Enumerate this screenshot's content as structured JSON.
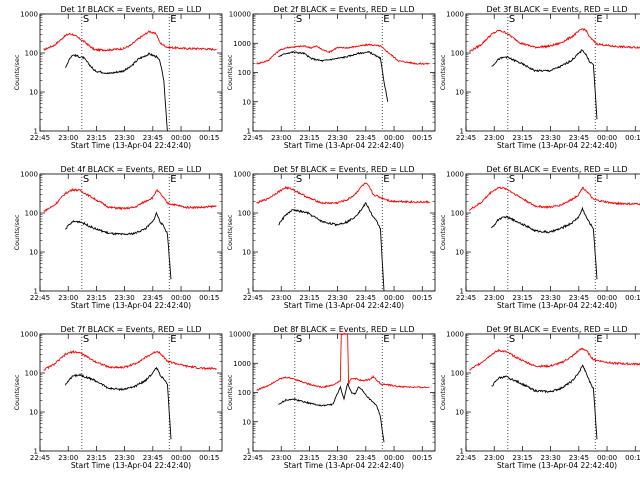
{
  "page": {
    "background": "#ffffff",
    "black_color": "#000000",
    "red_color": "#ff0000"
  },
  "chart_data": [
    {
      "type": "line",
      "title": "Det 1f BLACK = Events, RED = LLD",
      "xlabel": "Start Time (13-Apr-04 22:42:40)",
      "ylabel": "Counts/sec",
      "yscale": "log",
      "ylim": [
        1,
        1000
      ],
      "x_tick_labels": [
        "22:45",
        "23:00",
        "23:15",
        "23:30",
        "23:45",
        "00:00",
        "00:15"
      ],
      "y_tick_labels": [
        "1",
        "10",
        "100",
        "1000"
      ],
      "markers": [
        "S",
        "E"
      ],
      "series": [
        {
          "color": "red",
          "x": [
            2,
            8,
            14,
            16,
            18,
            24,
            30,
            38,
            46,
            50,
            54,
            60,
            64,
            66,
            70,
            80,
            85,
            89,
            93,
            97
          ],
          "y": [
            120,
            160,
            280,
            310,
            300,
            200,
            120,
            120,
            130,
            160,
            230,
            360,
            300,
            180,
            140,
            130,
            130,
            130,
            125,
            125
          ]
        },
        {
          "color": "black",
          "x": [
            14,
            16,
            18,
            24,
            30,
            38,
            46,
            50,
            54,
            60,
            64,
            66,
            68,
            70
          ],
          "y": [
            40,
            70,
            90,
            75,
            35,
            30,
            35,
            45,
            70,
            95,
            80,
            60,
            20,
            1
          ]
        }
      ]
    },
    {
      "type": "line",
      "title": "Det 2f BLACK = Events, RED = LLD",
      "xlabel": "Start Time (13-Apr-04 22:42:40)",
      "ylabel": "Counts/sec",
      "yscale": "log",
      "ylim": [
        1,
        10000
      ],
      "x_tick_labels": [
        "22:45",
        "23:00",
        "23:15",
        "23:30",
        "23:45",
        "00:00",
        "00:15"
      ],
      "y_tick_labels": [
        "1",
        "10",
        "100",
        "1000",
        "10000"
      ],
      "markers": [
        "S",
        "E"
      ],
      "series": [
        {
          "color": "red",
          "x": [
            2,
            8,
            14,
            18,
            22,
            28,
            32,
            35,
            38,
            42,
            46,
            52,
            58,
            64,
            70,
            74,
            80,
            90,
            97
          ],
          "y": [
            200,
            250,
            550,
            700,
            750,
            800,
            700,
            800,
            600,
            500,
            700,
            700,
            800,
            900,
            800,
            500,
            250,
            200,
            200
          ]
        },
        {
          "color": "black",
          "x": [
            14,
            18,
            22,
            28,
            32,
            38,
            46,
            52,
            58,
            64,
            70,
            72,
            74
          ],
          "y": [
            350,
            450,
            500,
            450,
            300,
            250,
            300,
            350,
            450,
            500,
            300,
            50,
            10
          ]
        }
      ]
    },
    {
      "type": "line",
      "title": "Det 3f BLACK = Events, RED = LLD",
      "xlabel": "Start Time (13-Apr-04 22:42:40)",
      "ylabel": "Counts/sec",
      "yscale": "log",
      "ylim": [
        1,
        1000
      ],
      "x_tick_labels": [
        "22:45",
        "23:00",
        "23:15",
        "23:30",
        "23:45",
        "00:00",
        "00:15"
      ],
      "y_tick_labels": [
        "1",
        "10",
        "100",
        "1000"
      ],
      "markers": [
        "S",
        "E"
      ],
      "series": [
        {
          "color": "red",
          "x": [
            2,
            8,
            14,
            18,
            22,
            30,
            38,
            46,
            52,
            58,
            64,
            66,
            68,
            72,
            80,
            90,
            97
          ],
          "y": [
            110,
            160,
            300,
            380,
            330,
            180,
            140,
            150,
            180,
            260,
            420,
            380,
            250,
            170,
            150,
            140,
            140
          ]
        },
        {
          "color": "black",
          "x": [
            14,
            18,
            22,
            30,
            38,
            46,
            52,
            58,
            64,
            66,
            68,
            70,
            72
          ],
          "y": [
            45,
            70,
            80,
            55,
            35,
            35,
            45,
            65,
            120,
            90,
            60,
            50,
            2
          ]
        }
      ]
    },
    {
      "type": "line",
      "title": "Det 4f BLACK = Events, RED = LLD",
      "xlabel": "Start Time (13-Apr-04 22:42:40)",
      "ylabel": "Counts/sec",
      "yscale": "log",
      "ylim": [
        1,
        1000
      ],
      "x_tick_labels": [
        "22:45",
        "23:00",
        "23:15",
        "23:30",
        "23:45",
        "00:00",
        "00:15"
      ],
      "y_tick_labels": [
        "1",
        "10",
        "100",
        "1000"
      ],
      "markers": [
        "S",
        "E"
      ],
      "series": [
        {
          "color": "red",
          "x": [
            2,
            8,
            14,
            18,
            22,
            30,
            38,
            46,
            52,
            58,
            62,
            64,
            66,
            70,
            80,
            90,
            97
          ],
          "y": [
            110,
            160,
            320,
            400,
            380,
            230,
            140,
            130,
            140,
            200,
            250,
            380,
            320,
            180,
            140,
            140,
            150
          ]
        },
        {
          "color": "black",
          "x": [
            14,
            18,
            22,
            30,
            38,
            46,
            52,
            58,
            62,
            64,
            66,
            68,
            70,
            72
          ],
          "y": [
            40,
            60,
            60,
            40,
            30,
            28,
            30,
            40,
            60,
            100,
            60,
            45,
            30,
            2
          ]
        }
      ]
    },
    {
      "type": "line",
      "title": "Det 5f BLACK = Events, RED = LLD",
      "xlabel": "Start Time (13-Apr-04 22:42:40)",
      "ylabel": "Counts/sec",
      "yscale": "log",
      "ylim": [
        1,
        1000
      ],
      "x_tick_labels": [
        "22:45",
        "23:00",
        "23:15",
        "23:30",
        "23:45",
        "00:00",
        "00:15"
      ],
      "y_tick_labels": [
        "1",
        "10",
        "100",
        "1000"
      ],
      "markers": [
        "S",
        "E"
      ],
      "series": [
        {
          "color": "red",
          "x": [
            2,
            8,
            14,
            18,
            22,
            30,
            38,
            46,
            52,
            56,
            60,
            62,
            64,
            66,
            70,
            76,
            80,
            90,
            97
          ],
          "y": [
            180,
            230,
            350,
            450,
            400,
            250,
            180,
            180,
            220,
            300,
            500,
            580,
            450,
            300,
            250,
            200,
            200,
            190,
            190
          ]
        },
        {
          "color": "black",
          "x": [
            14,
            18,
            22,
            30,
            38,
            46,
            52,
            56,
            60,
            62,
            64,
            66,
            68,
            70,
            72
          ],
          "y": [
            50,
            90,
            120,
            100,
            60,
            50,
            60,
            80,
            130,
            180,
            120,
            80,
            60,
            40,
            1
          ]
        }
      ]
    },
    {
      "type": "line",
      "title": "Det 6f BLACK = Events, RED = LLD",
      "xlabel": "Start Time (13-Apr-04 22:42:40)",
      "ylabel": "Counts/sec",
      "yscale": "log",
      "ylim": [
        1,
        1000
      ],
      "x_tick_labels": [
        "22:45",
        "23:00",
        "23:15",
        "23:30",
        "23:45",
        "00:00",
        "00:15"
      ],
      "y_tick_labels": [
        "1",
        "10",
        "100",
        "1000"
      ],
      "markers": [
        "S",
        "E"
      ],
      "series": [
        {
          "color": "red",
          "x": [
            2,
            8,
            14,
            18,
            22,
            30,
            38,
            46,
            52,
            58,
            62,
            64,
            66,
            70,
            80,
            90,
            97
          ],
          "y": [
            120,
            180,
            350,
            450,
            420,
            250,
            150,
            140,
            160,
            220,
            300,
            450,
            380,
            220,
            180,
            170,
            170
          ]
        },
        {
          "color": "black",
          "x": [
            14,
            18,
            22,
            30,
            38,
            46,
            52,
            58,
            62,
            64,
            66,
            68,
            70,
            72
          ],
          "y": [
            40,
            70,
            80,
            55,
            35,
            32,
            40,
            55,
            80,
            130,
            80,
            55,
            40,
            2
          ]
        }
      ]
    },
    {
      "type": "line",
      "title": "Det 7f BLACK = Events, RED = LLD",
      "xlabel": "Start Time (13-Apr-04 22:42:40)",
      "ylabel": "Counts/sec",
      "yscale": "log",
      "ylim": [
        1,
        1000
      ],
      "x_tick_labels": [
        "22:45",
        "23:00",
        "23:15",
        "23:30",
        "23:45",
        "00:00",
        "00:15"
      ],
      "y_tick_labels": [
        "1",
        "10",
        "100",
        "1000"
      ],
      "markers": [
        "S",
        "E"
      ],
      "series": [
        {
          "color": "red",
          "x": [
            2,
            8,
            14,
            18,
            22,
            30,
            38,
            46,
            52,
            58,
            62,
            64,
            66,
            70,
            80,
            90,
            97
          ],
          "y": [
            120,
            170,
            300,
            350,
            330,
            200,
            140,
            140,
            170,
            250,
            320,
            360,
            330,
            200,
            150,
            130,
            130
          ]
        },
        {
          "color": "black",
          "x": [
            14,
            18,
            22,
            30,
            38,
            46,
            52,
            58,
            62,
            64,
            66,
            68,
            70,
            72
          ],
          "y": [
            50,
            85,
            90,
            65,
            40,
            38,
            45,
            65,
            100,
            140,
            90,
            70,
            50,
            2
          ]
        }
      ]
    },
    {
      "type": "line",
      "title": "Det 8f BLACK = Events, RED = LLD",
      "xlabel": "Start Time (13-Apr-04 22:42:40)",
      "ylabel": "Counts/sec",
      "yscale": "log",
      "ylim": [
        1,
        10000
      ],
      "x_tick_labels": [
        "22:45",
        "23:00",
        "23:15",
        "23:30",
        "23:45",
        "00:00",
        "00:15"
      ],
      "y_tick_labels": [
        "1",
        "10",
        "100",
        "1000",
        "10000"
      ],
      "markers": [
        "S",
        "E"
      ],
      "series": [
        {
          "color": "red",
          "x": [
            2,
            8,
            14,
            18,
            22,
            30,
            38,
            44,
            48,
            48.5,
            52,
            52.5,
            54,
            56,
            60,
            64,
            66,
            70,
            80,
            90,
            97
          ],
          "y": [
            120,
            170,
            280,
            330,
            300,
            200,
            150,
            180,
            250,
            10000,
            10000,
            200,
            300,
            300,
            250,
            280,
            350,
            200,
            160,
            150,
            150
          ]
        },
        {
          "color": "black",
          "x": [
            14,
            18,
            22,
            30,
            38,
            44,
            46,
            48,
            50,
            52,
            54,
            56,
            58,
            60,
            62,
            64,
            66,
            68,
            70,
            72
          ],
          "y": [
            40,
            55,
            60,
            45,
            35,
            40,
            80,
            150,
            60,
            200,
            100,
            90,
            150,
            120,
            80,
            60,
            45,
            35,
            15,
            2
          ]
        }
      ]
    },
    {
      "type": "line",
      "title": "Det 9f BLACK = Events, RED = LLD",
      "xlabel": "Start Time (13-Apr-04 22:42:40)",
      "ylabel": "Counts/sec",
      "yscale": "log",
      "ylim": [
        1,
        1000
      ],
      "x_tick_labels": [
        "22:45",
        "23:00",
        "23:15",
        "23:30",
        "23:45",
        "00:00",
        "00:15"
      ],
      "y_tick_labels": [
        "1",
        "10",
        "100",
        "1000"
      ],
      "markers": [
        "S",
        "E"
      ],
      "series": [
        {
          "color": "red",
          "x": [
            2,
            8,
            14,
            18,
            22,
            30,
            38,
            46,
            52,
            58,
            62,
            64,
            66,
            70,
            80,
            90,
            97
          ],
          "y": [
            120,
            180,
            300,
            380,
            350,
            220,
            150,
            150,
            180,
            260,
            380,
            420,
            380,
            220,
            180,
            170,
            170
          ]
        },
        {
          "color": "black",
          "x": [
            14,
            18,
            22,
            30,
            38,
            46,
            52,
            58,
            62,
            64,
            66,
            68,
            70,
            72
          ],
          "y": [
            45,
            75,
            80,
            55,
            35,
            33,
            40,
            60,
            100,
            160,
            100,
            60,
            40,
            2
          ]
        }
      ]
    }
  ]
}
